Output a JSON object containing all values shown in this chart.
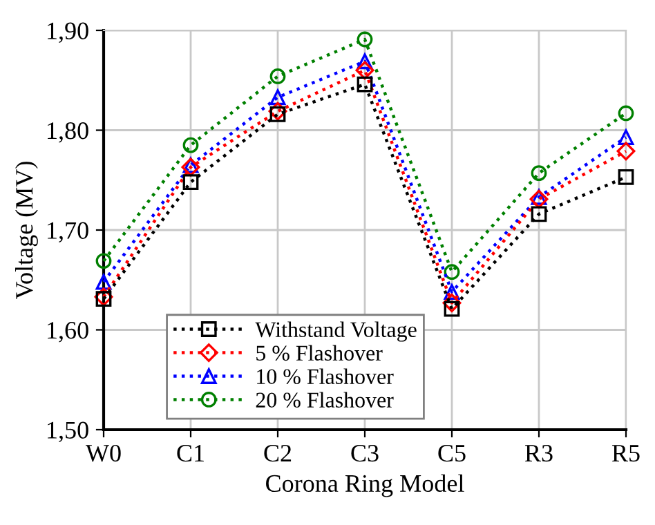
{
  "chart_data": {
    "type": "line",
    "xlabel": "Corona Ring Model",
    "ylabel": "Voltage (MV)",
    "categories": [
      "W0",
      "C1",
      "C2",
      "C3",
      "C5",
      "R3",
      "R5"
    ],
    "ylim": [
      1.5,
      1.9
    ],
    "yticks": [
      {
        "value": 1.5,
        "label": "1,50"
      },
      {
        "value": 1.6,
        "label": "1,60"
      },
      {
        "value": 1.7,
        "label": "1,70"
      },
      {
        "value": 1.8,
        "label": "1,80"
      },
      {
        "value": 1.9,
        "label": "1,90"
      }
    ],
    "grid": true,
    "legend": "bottom left",
    "line_style": "dotted",
    "series": [
      {
        "name": "Withstand Voltage",
        "color": "#000000",
        "marker": "square",
        "values": [
          1.631,
          1.748,
          1.816,
          1.846,
          1.621,
          1.716,
          1.753
        ]
      },
      {
        "name": "5 % Flashover",
        "color": "#ff0000",
        "marker": "diamond",
        "values": [
          1.633,
          1.763,
          1.819,
          1.86,
          1.627,
          1.731,
          1.779
        ]
      },
      {
        "name": "10 % Flashover",
        "color": "#0000ff",
        "marker": "triangle",
        "values": [
          1.648,
          1.765,
          1.833,
          1.869,
          1.638,
          1.733,
          1.793
        ]
      },
      {
        "name": "20 % Flashover",
        "color": "#008000",
        "marker": "circle",
        "values": [
          1.669,
          1.785,
          1.854,
          1.891,
          1.658,
          1.757,
          1.817
        ]
      }
    ]
  }
}
